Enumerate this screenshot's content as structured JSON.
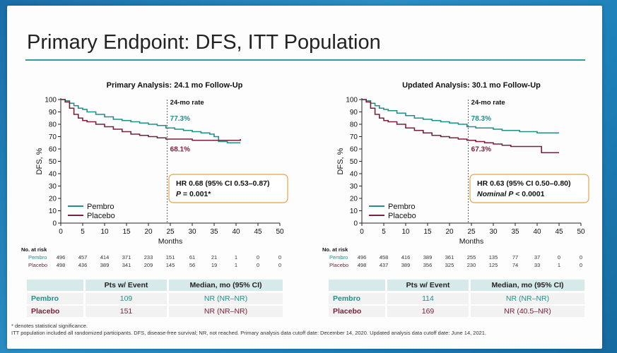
{
  "slide": {
    "title": "Primary Endpoint: DFS, ITT Population",
    "footnote1": "* denotes statistical significance.",
    "footnote2": "ITT population included all randomized participants. DFS, disease-free survival; NR, not reached. Primary analysis data cutoff date: December 14, 2020. Updated analysis data cutoff date: June 14, 2021."
  },
  "colors": {
    "pembro": "#1f8f88",
    "placebo": "#7a2038",
    "accent": "#2b9ea0",
    "hr_box": "#e6a04a"
  },
  "chart_data": [
    {
      "type": "line",
      "title": "Primary Analysis: 24.1 mo Follow-Up",
      "xlabel": "Months",
      "ylabel": "DFS, %",
      "xlim": [
        0,
        50
      ],
      "ylim": [
        0,
        100
      ],
      "xticks": [
        "0",
        "5",
        "10",
        "15",
        "20",
        "25",
        "30",
        "35",
        "40",
        "45",
        "50"
      ],
      "yticks": [
        "0",
        "10",
        "20",
        "30",
        "40",
        "50",
        "60",
        "70",
        "80",
        "90",
        "100"
      ],
      "annotation_header": "24-mo rate",
      "rate_pembro": "77.3%",
      "rate_placebo": "68.1%",
      "hr_line1": "HR 0.68 (95% CI 0.53–0.87)",
      "hr_line2_p": "P",
      "hr_line2_rest": " = 0.001*",
      "legend": [
        "Pembro",
        "Placebo"
      ],
      "series": [
        {
          "name": "Pembro",
          "x": [
            0,
            1,
            2,
            3,
            4,
            5,
            6,
            8,
            10,
            12,
            14,
            16,
            18,
            20,
            22,
            24,
            26,
            28,
            30,
            32,
            34,
            35,
            36,
            38,
            40,
            41
          ],
          "y": [
            100,
            99,
            97,
            95,
            93,
            92,
            90,
            88,
            86,
            84,
            83,
            82,
            81,
            80,
            79,
            77,
            76,
            75,
            74,
            73,
            72,
            70,
            66,
            65,
            65,
            65
          ]
        },
        {
          "name": "Placebo",
          "x": [
            0,
            1,
            2,
            3,
            4,
            5,
            6,
            8,
            10,
            12,
            14,
            16,
            18,
            20,
            22,
            24,
            26,
            28,
            30,
            32,
            34,
            36,
            38,
            40,
            41
          ],
          "y": [
            100,
            98,
            93,
            88,
            85,
            83,
            82,
            80,
            78,
            76,
            74,
            72,
            71,
            70,
            69,
            68,
            68,
            68,
            67,
            67,
            67,
            67,
            67,
            67,
            68
          ]
        }
      ],
      "at_risk": {
        "label": "No. at risk",
        "rows": [
          {
            "name": "Pembro",
            "values": [
              "496",
              "457",
              "414",
              "371",
              "233",
              "151",
              "61",
              "21",
              "1",
              "0",
              "0"
            ]
          },
          {
            "name": "Placebo",
            "values": [
              "498",
              "436",
              "389",
              "341",
              "209",
              "145",
              "56",
              "19",
              "1",
              "0",
              "0"
            ]
          }
        ]
      },
      "table": {
        "headers": [
          "",
          "Pts w/ Event",
          "Median, mo (95% CI)"
        ],
        "rows": [
          {
            "name": "Pembro",
            "events": "109",
            "median": "NR (NR–NR)"
          },
          {
            "name": "Placebo",
            "events": "151",
            "median": "NR (NR–NR)"
          }
        ]
      }
    },
    {
      "type": "line",
      "title": "Updated Analysis: 30.1 mo Follow-Up",
      "xlabel": "Months",
      "ylabel": "DFS, %",
      "xlim": [
        0,
        50
      ],
      "ylim": [
        0,
        100
      ],
      "xticks": [
        "0",
        "5",
        "10",
        "15",
        "20",
        "25",
        "30",
        "35",
        "40",
        "45",
        "50"
      ],
      "yticks": [
        "0",
        "10",
        "20",
        "30",
        "40",
        "50",
        "60",
        "70",
        "80",
        "90",
        "100"
      ],
      "annotation_header": "24-mo rate",
      "rate_pembro": "78.3%",
      "rate_placebo": "67.3%",
      "hr_line1": "HR 0.63 (95% CI 0.50–0.80)",
      "hr_line2_p": "Nominal P",
      "hr_line2_rest": " < 0.0001",
      "legend": [
        "Pembro",
        "Placebo"
      ],
      "series": [
        {
          "name": "Pembro",
          "x": [
            0,
            1,
            2,
            3,
            4,
            5,
            6,
            8,
            10,
            12,
            14,
            16,
            18,
            20,
            22,
            24,
            26,
            28,
            30,
            32,
            34,
            36,
            38,
            40,
            42,
            44,
            45
          ],
          "y": [
            100,
            99,
            97,
            95,
            93,
            92,
            91,
            89,
            87,
            85,
            84,
            83,
            82,
            81,
            80,
            78,
            77,
            77,
            76,
            75,
            75,
            74,
            74,
            73,
            73,
            73,
            73
          ]
        },
        {
          "name": "Placebo",
          "x": [
            0,
            1,
            2,
            3,
            4,
            5,
            6,
            8,
            10,
            12,
            14,
            16,
            18,
            20,
            22,
            24,
            26,
            28,
            30,
            32,
            34,
            36,
            38,
            40,
            41,
            43,
            45
          ],
          "y": [
            100,
            98,
            93,
            88,
            85,
            83,
            82,
            80,
            77,
            75,
            73,
            71,
            70,
            69,
            68,
            67,
            66,
            65,
            64,
            63,
            62,
            62,
            62,
            62,
            57,
            57,
            57
          ]
        }
      ],
      "at_risk": {
        "label": "No. at risk",
        "rows": [
          {
            "name": "Pembro",
            "values": [
              "496",
              "458",
              "416",
              "389",
              "361",
              "255",
              "135",
              "77",
              "37",
              "0",
              "0"
            ]
          },
          {
            "name": "Placebo",
            "values": [
              "498",
              "437",
              "389",
              "356",
              "325",
              "230",
              "125",
              "74",
              "33",
              "1",
              "0"
            ]
          }
        ]
      },
      "table": {
        "headers": [
          "",
          "Pts w/ Event",
          "Median, mo (95% CI)"
        ],
        "rows": [
          {
            "name": "Pembro",
            "events": "114",
            "median": "NR (NR–NR)"
          },
          {
            "name": "Placebo",
            "events": "169",
            "median": "NR (40.5–NR)"
          }
        ]
      }
    }
  ]
}
